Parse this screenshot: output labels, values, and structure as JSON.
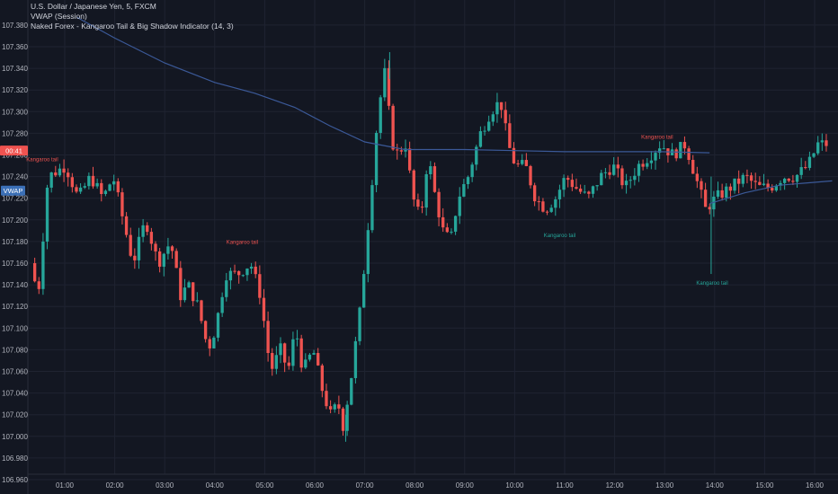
{
  "legend": {
    "symbol": "U.S. Dollar / Japanese Yen, 5, FXCM",
    "vwap": "VWAP (Session)",
    "indicator": "Naked Forex - Kangaroo Tail & Big Shadow Indicator (14, 3)"
  },
  "badges": {
    "price_timer": "00:41",
    "vwap": "VWAP"
  },
  "colors": {
    "background": "#131722",
    "up": "#26a69a",
    "down": "#ef5350",
    "vwap": "#3b5998",
    "grid": "#1f2331"
  },
  "chart_data": {
    "type": "candlestick",
    "y_ticks": [
      "107.380",
      "107.360",
      "107.340",
      "107.320",
      "107.300",
      "107.280",
      "107.260",
      "107.240",
      "107.220",
      "107.200",
      "107.180",
      "107.160",
      "107.140",
      "107.120",
      "107.100",
      "107.080",
      "107.060",
      "107.040",
      "107.020",
      "107.000",
      "106.980",
      "106.960"
    ],
    "ylim": [
      106.958,
      107.387
    ],
    "x_ticks": [
      "01:00",
      "02:00",
      "03:00",
      "04:00",
      "05:00",
      "06:00",
      "07:00",
      "08:00",
      "09:00",
      "10:00",
      "11:00",
      "12:00",
      "13:00",
      "14:00",
      "15:00",
      "16:00"
    ],
    "x_tick_hours": [
      1,
      2,
      3,
      4,
      5,
      6,
      7,
      8,
      9,
      10,
      11,
      12,
      13,
      14,
      15,
      16
    ],
    "xlim_hours": [
      0.35,
      16.35
    ],
    "grid": true,
    "candle_width_minutes": 5,
    "waypoints": [
      [
        0.4,
        107.16
      ],
      [
        0.55,
        107.13
      ],
      [
        0.75,
        107.24
      ],
      [
        1.1,
        107.25
      ],
      [
        1.35,
        107.22
      ],
      [
        1.6,
        107.24
      ],
      [
        1.85,
        107.22
      ],
      [
        2.05,
        107.24
      ],
      [
        2.25,
        107.2
      ],
      [
        2.45,
        107.16
      ],
      [
        2.7,
        107.2
      ],
      [
        2.95,
        107.16
      ],
      [
        3.2,
        107.18
      ],
      [
        3.4,
        107.13
      ],
      [
        3.55,
        107.14
      ],
      [
        3.75,
        107.12
      ],
      [
        3.95,
        107.08
      ],
      [
        4.1,
        107.1
      ],
      [
        4.3,
        107.15
      ],
      [
        4.55,
        107.15
      ],
      [
        4.8,
        107.16
      ],
      [
        5.0,
        107.13
      ],
      [
        5.2,
        107.06
      ],
      [
        5.4,
        107.08
      ],
      [
        5.55,
        107.06
      ],
      [
        5.7,
        107.1
      ],
      [
        5.85,
        107.06
      ],
      [
        6.05,
        107.08
      ],
      [
        6.25,
        107.04
      ],
      [
        6.4,
        107.02
      ],
      [
        6.55,
        107.03
      ],
      [
        6.65,
        107.01
      ],
      [
        6.8,
        107.05
      ],
      [
        7.0,
        107.12
      ],
      [
        7.2,
        107.22
      ],
      [
        7.35,
        107.3
      ],
      [
        7.5,
        107.34
      ],
      [
        7.6,
        107.28
      ],
      [
        7.7,
        107.26
      ],
      [
        7.9,
        107.27
      ],
      [
        8.05,
        107.22
      ],
      [
        8.2,
        107.2
      ],
      [
        8.35,
        107.26
      ],
      [
        8.5,
        107.22
      ],
      [
        8.65,
        107.19
      ],
      [
        8.8,
        107.18
      ],
      [
        8.95,
        107.22
      ],
      [
        9.15,
        107.24
      ],
      [
        9.4,
        107.28
      ],
      [
        9.6,
        107.3
      ],
      [
        9.8,
        107.31
      ],
      [
        9.95,
        107.27
      ],
      [
        10.1,
        107.25
      ],
      [
        10.3,
        107.25
      ],
      [
        10.5,
        107.22
      ],
      [
        10.7,
        107.21
      ],
      [
        10.9,
        107.22
      ],
      [
        11.1,
        107.24
      ],
      [
        11.3,
        107.23
      ],
      [
        11.55,
        107.22
      ],
      [
        11.8,
        107.24
      ],
      [
        12.05,
        107.25
      ],
      [
        12.3,
        107.23
      ],
      [
        12.55,
        107.25
      ],
      [
        12.8,
        107.26
      ],
      [
        13.0,
        107.27
      ],
      [
        13.25,
        107.26
      ],
      [
        13.5,
        107.27
      ],
      [
        13.7,
        107.24
      ],
      [
        13.9,
        107.21
      ],
      [
        14.1,
        107.22
      ],
      [
        14.4,
        107.23
      ],
      [
        14.7,
        107.24
      ],
      [
        14.95,
        107.23
      ],
      [
        15.2,
        107.23
      ],
      [
        15.45,
        107.24
      ],
      [
        15.7,
        107.24
      ],
      [
        15.95,
        107.25
      ],
      [
        16.15,
        107.27
      ],
      [
        16.3,
        107.27
      ]
    ],
    "vwap": [
      [
        1.25,
        107.387
      ],
      [
        2.0,
        107.368
      ],
      [
        3.0,
        107.345
      ],
      [
        4.0,
        107.327
      ],
      [
        4.8,
        107.317
      ],
      [
        5.6,
        107.304
      ],
      [
        6.3,
        107.287
      ],
      [
        7.0,
        107.272
      ],
      [
        7.8,
        107.265
      ],
      [
        9.0,
        107.265
      ],
      [
        10.0,
        107.264
      ],
      [
        11.0,
        107.263
      ],
      [
        12.0,
        107.263
      ],
      [
        12.9,
        107.263
      ],
      [
        13.9,
        107.262
      ]
    ],
    "vwap2": [
      [
        13.9,
        107.215
      ],
      [
        14.6,
        107.225
      ],
      [
        15.3,
        107.232
      ],
      [
        16.35,
        107.236
      ]
    ],
    "signals": [
      {
        "label": "Kangaroo tail",
        "hour": 0.55,
        "price": 107.254,
        "color": "#ef5350"
      },
      {
        "label": "Kangaroo tail",
        "hour": 4.55,
        "price": 107.178,
        "color": "#ef5350"
      },
      {
        "label": "Kangaroo tail",
        "hour": 10.9,
        "price": 107.184,
        "color": "#26a69a"
      },
      {
        "label": "Kangaroo tail",
        "hour": 12.85,
        "price": 107.275,
        "color": "#ef5350"
      },
      {
        "label": "Kangaroo tail",
        "hour": 13.95,
        "price": 107.14,
        "color": "#26a69a"
      }
    ],
    "spikes": [
      {
        "hour": 13.93,
        "low": 107.15,
        "high": 107.24
      },
      {
        "hour": 7.5,
        "low": 107.33,
        "high": 107.355
      },
      {
        "hour": 6.62,
        "low": 106.995,
        "high": 107.02
      }
    ],
    "current_price": 107.264,
    "vwap_badge_price": 107.227
  }
}
